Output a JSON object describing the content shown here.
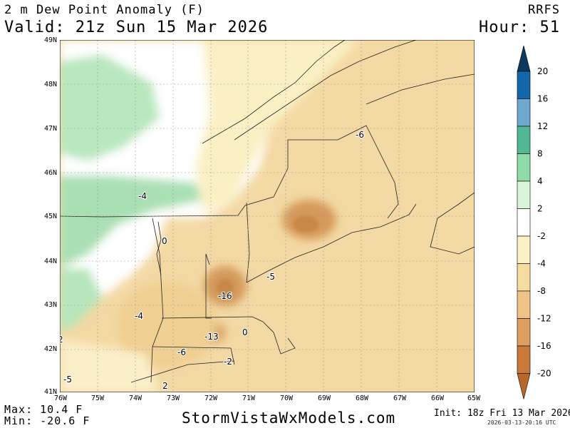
{
  "header": {
    "title": "2 m Dew Point Anomaly (F)",
    "model": "RRFS",
    "valid": "Valid: 21z Sun 15 Mar 2026",
    "hour": "Hour: 51"
  },
  "axes": {
    "lat_labels": [
      "49N",
      "48N",
      "47N",
      "46N",
      "45N",
      "44N",
      "43N",
      "42N",
      "41N"
    ],
    "lon_labels": [
      "76W",
      "75W",
      "74W",
      "73W",
      "72W",
      "71W",
      "70W",
      "69W",
      "68W",
      "67W",
      "66W",
      "65W"
    ]
  },
  "contour_labels": [
    "-6",
    "-4",
    "0",
    "-5",
    "-16",
    "-4",
    "-13",
    "0",
    "-6",
    "-2",
    "2",
    "2",
    "-5"
  ],
  "legend": {
    "ticks": [
      "20",
      "16",
      "12",
      "8",
      "4",
      "2",
      "-2",
      "-4",
      "-8",
      "-12",
      "-16",
      "-20"
    ],
    "colors": [
      "#0b3a5e",
      "#1467a8",
      "#6fa7cf",
      "#52b893",
      "#8fdca8",
      "#d9f5d9",
      "#ffffff",
      "#fbf1c2",
      "#f5dca0",
      "#efc286",
      "#dd9e60",
      "#c97a3b",
      "#b8682b"
    ]
  },
  "footer": {
    "max": "Max: 10.4 F",
    "min": "Min: -20.6 F",
    "site": "StormVistaWxModels.com",
    "init": "Init: 18z Fri 13 Mar 2026",
    "stamp": "2026-03-13-20:16 UTC"
  }
}
